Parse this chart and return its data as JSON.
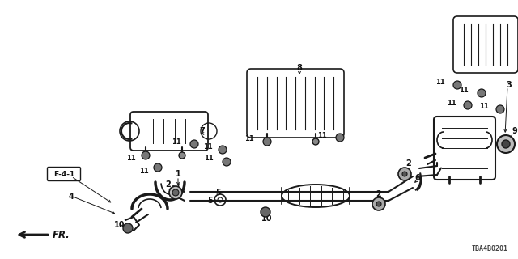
{
  "bg_color": "#ffffff",
  "line_color": "#1a1a1a",
  "diagram_code": "TBA4B0201",
  "label_color": "#111111",
  "figsize": [
    6.4,
    3.2
  ],
  "dpi": 100
}
